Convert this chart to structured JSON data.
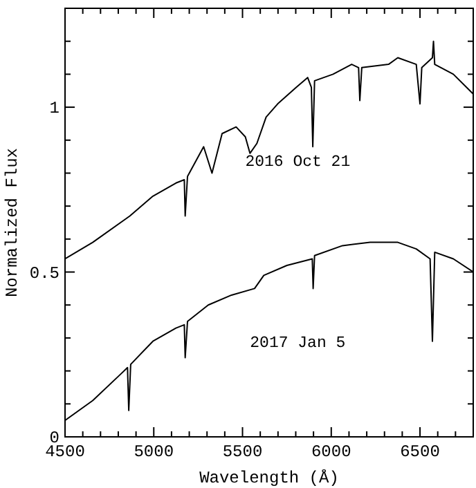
{
  "chart_data": {
    "type": "line",
    "xlabel": "Wavelength (Å)",
    "ylabel": "Normalized Flux",
    "xlim": [
      4500,
      6800
    ],
    "ylim": [
      0,
      1.3
    ],
    "xticks": [
      4500,
      {
        "value": 4600,
        "label": null
      },
      {
        "value": 4700,
        "label": null
      },
      {
        "value": 4800,
        "label": null
      },
      {
        "value": 4900,
        "label": null
      },
      5000,
      {
        "value": 5100,
        "label": null
      },
      {
        "value": 5200,
        "label": null
      },
      {
        "value": 5300,
        "label": null
      },
      {
        "value": 5400,
        "label": null
      },
      5500,
      {
        "value": 5600,
        "label": null
      },
      {
        "value": 5700,
        "label": null
      },
      {
        "value": 5800,
        "label": null
      },
      {
        "value": 5900,
        "label": null
      },
      6000,
      {
        "value": 6100,
        "label": null
      },
      {
        "value": 6200,
        "label": null
      },
      {
        "value": 6300,
        "label": null
      },
      {
        "value": 6400,
        "label": null
      },
      6500,
      {
        "value": 6600,
        "label": null
      },
      {
        "value": 6700,
        "label": null
      }
    ],
    "yticks": [
      0,
      {
        "value": 0.1,
        "label": null
      },
      {
        "value": 0.2,
        "label": null
      },
      {
        "value": 0.3,
        "label": null
      },
      {
        "value": 0.4,
        "label": null
      },
      0.5,
      {
        "value": 0.6,
        "label": null
      },
      {
        "value": 0.7,
        "label": null
      },
      {
        "value": 0.8,
        "label": null
      },
      {
        "value": 0.9,
        "label": null
      },
      1,
      {
        "value": 1.1,
        "label": null
      },
      {
        "value": 1.2,
        "label": null
      }
    ],
    "series": [
      {
        "name": "2016 Oct 21",
        "color": "#000000",
        "x": [
          4500,
          4656,
          4865,
          4995,
          5125,
          5172,
          5177,
          5190,
          5281,
          5328,
          5385,
          5464,
          5516,
          5542,
          5581,
          5633,
          5698,
          5802,
          5867,
          5888,
          5896,
          5906,
          6010,
          6115,
          6154,
          6161,
          6172,
          6323,
          6375,
          6479,
          6500,
          6510,
          6570,
          6576,
          6583,
          6688,
          6800
        ],
        "values": [
          0.54,
          0.59,
          0.67,
          0.73,
          0.77,
          0.78,
          0.67,
          0.79,
          0.88,
          0.8,
          0.92,
          0.94,
          0.91,
          0.86,
          0.89,
          0.97,
          1.01,
          1.06,
          1.09,
          1.06,
          0.88,
          1.08,
          1.1,
          1.13,
          1.12,
          1.02,
          1.12,
          1.13,
          1.15,
          1.13,
          1.01,
          1.12,
          1.15,
          1.2,
          1.13,
          1.1,
          1.04
        ]
      },
      {
        "name": "2017 Jan 5",
        "color": "#000000",
        "x": [
          4500,
          4656,
          4813,
          4852,
          4859,
          4870,
          4995,
          5125,
          5172,
          5177,
          5190,
          5307,
          5438,
          5568,
          5620,
          5750,
          5893,
          5898,
          5906,
          6063,
          6219,
          6375,
          6479,
          6557,
          6570,
          6583,
          6688,
          6800
        ],
        "values": [
          0.05,
          0.11,
          0.19,
          0.21,
          0.08,
          0.22,
          0.29,
          0.33,
          0.34,
          0.24,
          0.35,
          0.4,
          0.43,
          0.45,
          0.49,
          0.52,
          0.54,
          0.45,
          0.55,
          0.58,
          0.59,
          0.59,
          0.57,
          0.54,
          0.29,
          0.56,
          0.54,
          0.5
        ]
      }
    ],
    "grid": false,
    "marker": "none",
    "line_style": "solid"
  }
}
